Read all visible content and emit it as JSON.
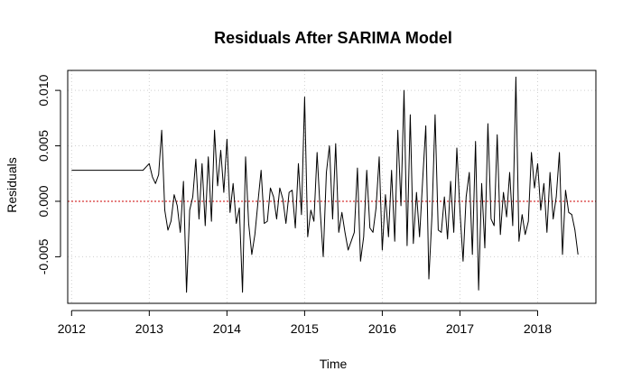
{
  "chart_data": {
    "type": "line",
    "title": "Residuals After SARIMA Model",
    "xlabel": "Time",
    "ylabel": "Residuals",
    "xlim": [
      2011.95,
      2018.75
    ],
    "ylim": [
      -0.0092,
      0.0118
    ],
    "x_ticks": [
      2012,
      2013,
      2014,
      2015,
      2016,
      2017,
      2018
    ],
    "y_ticks": [
      -0.005,
      0.0,
      0.005,
      0.01
    ],
    "y_tick_labels": [
      "-0.005",
      "0.000",
      "0.005",
      "0.010"
    ],
    "grid": true,
    "reference_line": {
      "y": 0.0,
      "color": "#cc0000",
      "style": "dotted"
    },
    "series": [
      {
        "color": "#000000",
        "x": [
          2012.0,
          2012.92,
          2013.0,
          2013.04,
          2013.08,
          2013.12,
          2013.16,
          2013.2,
          2013.24,
          2013.28,
          2013.32,
          2013.36,
          2013.4,
          2013.44,
          2013.48,
          2013.52,
          2013.56,
          2013.6,
          2013.64,
          2013.68,
          2013.72,
          2013.76,
          2013.8,
          2013.84,
          2013.88,
          2013.92,
          2013.96,
          2014.0,
          2014.04,
          2014.08,
          2014.12,
          2014.16,
          2014.2,
          2014.24,
          2014.28,
          2014.32,
          2014.36,
          2014.4,
          2014.44,
          2014.48,
          2014.52,
          2014.56,
          2014.6,
          2014.64,
          2014.68,
          2014.72,
          2014.76,
          2014.8,
          2014.84,
          2014.88,
          2014.92,
          2014.96,
          2015.0,
          2015.04,
          2015.08,
          2015.12,
          2015.16,
          2015.2,
          2015.24,
          2015.28,
          2015.32,
          2015.36,
          2015.4,
          2015.44,
          2015.48,
          2015.52,
          2015.56,
          2015.6,
          2015.64,
          2015.68,
          2015.72,
          2015.76,
          2015.8,
          2015.84,
          2015.88,
          2015.92,
          2015.96,
          2016.0,
          2016.04,
          2016.08,
          2016.12,
          2016.16,
          2016.2,
          2016.24,
          2016.28,
          2016.32,
          2016.36,
          2016.4,
          2016.44,
          2016.48,
          2016.52,
          2016.56,
          2016.6,
          2016.64,
          2016.68,
          2016.72,
          2016.76,
          2016.8,
          2016.84,
          2016.88,
          2016.92,
          2016.96,
          2017.0,
          2017.04,
          2017.08,
          2017.12,
          2017.16,
          2017.2,
          2017.24,
          2017.28,
          2017.32,
          2017.36,
          2017.4,
          2017.44,
          2017.48,
          2017.52,
          2017.56,
          2017.6,
          2017.64,
          2017.68,
          2017.72,
          2017.76,
          2017.8,
          2017.84,
          2017.88,
          2017.92,
          2017.96,
          2018.0,
          2018.04,
          2018.08,
          2018.12,
          2018.16,
          2018.2,
          2018.24,
          2018.28,
          2018.32,
          2018.36,
          2018.4,
          2018.44,
          2018.48,
          2018.52
        ],
        "y": [
          0.0028,
          0.0028,
          0.0034,
          0.0022,
          0.0016,
          0.0024,
          0.0064,
          -0.0008,
          -0.0026,
          -0.0018,
          0.0006,
          -0.0004,
          -0.0028,
          0.0018,
          -0.0082,
          -0.0008,
          0.0004,
          0.0038,
          -0.0016,
          0.0034,
          -0.0022,
          0.004,
          -0.0018,
          0.0064,
          0.0014,
          0.0046,
          0.0008,
          0.0056,
          -0.001,
          0.0016,
          -0.002,
          -0.0006,
          -0.0082,
          0.004,
          -0.002,
          -0.0048,
          -0.003,
          0.0,
          0.0028,
          -0.002,
          -0.0018,
          0.0012,
          0.0004,
          -0.0016,
          0.0012,
          0.0002,
          -0.002,
          0.0008,
          0.001,
          -0.0024,
          0.0034,
          -0.0012,
          0.0094,
          -0.0032,
          -0.0008,
          -0.0018,
          0.0044,
          -0.0008,
          -0.005,
          0.0026,
          0.005,
          -0.0016,
          0.0052,
          -0.0028,
          -0.001,
          -0.0028,
          -0.0044,
          -0.0036,
          -0.0028,
          0.003,
          -0.0054,
          -0.0032,
          0.0028,
          -0.0024,
          -0.0028,
          -0.0006,
          0.004,
          -0.0044,
          0.0006,
          -0.0032,
          0.0028,
          -0.0036,
          0.0064,
          -0.0004,
          0.01,
          -0.004,
          0.0078,
          -0.0038,
          0.0008,
          -0.0032,
          0.002,
          0.0068,
          -0.007,
          -0.0012,
          0.0078,
          -0.0026,
          -0.0028,
          0.0004,
          -0.0034,
          0.0018,
          -0.0028,
          0.0048,
          -0.0008,
          -0.0054,
          0.0004,
          0.0026,
          -0.0048,
          0.0054,
          -0.008,
          0.0016,
          -0.0042,
          0.007,
          -0.0016,
          -0.0022,
          0.006,
          -0.003,
          0.0008,
          -0.0014,
          0.0026,
          -0.0022,
          0.0112,
          -0.0036,
          -0.0012,
          -0.003,
          -0.0018,
          0.0044,
          0.0012,
          0.0034,
          -0.0008,
          0.0016,
          -0.0028,
          0.0026,
          -0.0016,
          0.0004,
          0.0044,
          -0.0048,
          0.001,
          -0.001,
          -0.0012,
          -0.0026,
          -0.0048
        ]
      }
    ]
  }
}
